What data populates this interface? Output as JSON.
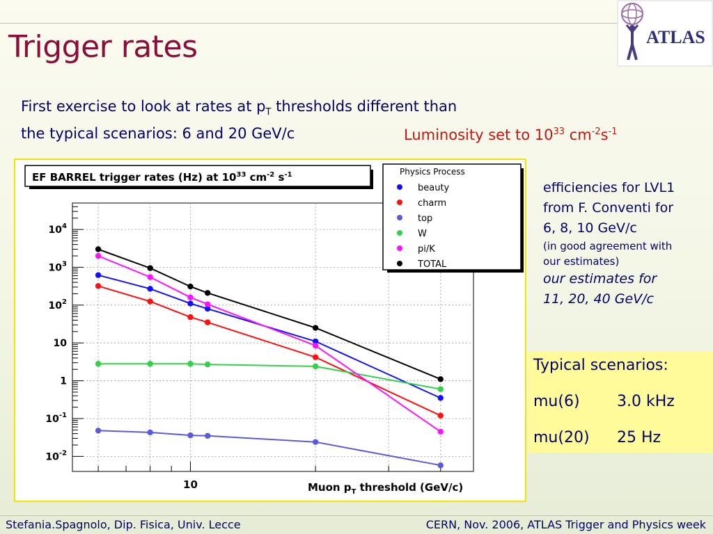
{
  "slide": {
    "title": "Trigger rates",
    "intro_line1_prefix": "First exercise to look at rates at p",
    "intro_line1_sub": "T",
    "intro_line1_suffix": " thresholds different than",
    "intro_line2": "the typical scenarios: 6 and 20 GeV/c",
    "luminosity_prefix": "Luminosity set to 10",
    "luminosity_exp": "33",
    "luminosity_cm": " cm",
    "luminosity_cm_exp": "-2",
    "luminosity_s": "s",
    "luminosity_s_exp": "-1"
  },
  "logo": {
    "text": "ATLAS",
    "icon": "atlas-figure-icon"
  },
  "side_note": {
    "line1": "efficiencies for LVL1",
    "line2": "from F. Conventi for",
    "line3": "6, 8, 10 GeV/c",
    "small1": "(in good agreement with",
    "small2": "our estimates)",
    "italic1": "our estimates for",
    "italic2": "11, 20, 40 GeV/c"
  },
  "scenarios": {
    "heading": "Typical scenarios:",
    "items": [
      {
        "label": "mu(6)",
        "value": "3.0 kHz"
      },
      {
        "label": "mu(20)",
        "value": "25 Hz"
      }
    ]
  },
  "footer": {
    "left": "Stefania.Spagnolo, Dip. Fisica, Univ. Lecce",
    "right": "CERN, Nov. 2006, ATLAS Trigger and Physics week"
  },
  "chart_data": {
    "type": "line",
    "title": "EF BARREL  trigger rates (Hz) at 10^33 cm^-2 s^-1",
    "title_parts": {
      "prefix": "EF BARREL  trigger rates (Hz) at 10",
      "exp1": "33",
      "mid": " cm",
      "exp2": "-2",
      "mid2": " s",
      "exp3": "-1"
    },
    "xlabel_parts": {
      "prefix": "Muon p",
      "sub": "T",
      "suffix": " threshold (GeV/c)"
    },
    "x_scale": "log",
    "y_scale": "log",
    "xlim": [
      5.2,
      48
    ],
    "ylim": [
      0.004,
      50000
    ],
    "grid": true,
    "x_tick_label": "10",
    "y_tick_labels": [
      {
        "value": 10000,
        "base": "10",
        "exp": "4"
      },
      {
        "value": 1000,
        "base": "10",
        "exp": "3"
      },
      {
        "value": 100,
        "base": "10",
        "exp": "2"
      },
      {
        "value": 10,
        "base": "10",
        "exp": ""
      },
      {
        "value": 1,
        "base": "1",
        "exp": ""
      },
      {
        "value": 0.1,
        "base": "10",
        "exp": "-1"
      },
      {
        "value": 0.01,
        "base": "10",
        "exp": "-2"
      }
    ],
    "legend_title": "Physics Process",
    "legend_position": "top-right",
    "x": [
      6,
      8,
      10,
      11,
      20,
      40
    ],
    "series": [
      {
        "name": "beauty",
        "color": "#1010ff",
        "values": [
          620,
          270,
          110,
          80,
          11,
          0.35
        ]
      },
      {
        "name": "charm",
        "color": "#ff1010",
        "values": [
          320,
          125,
          48,
          35,
          4.2,
          0.12
        ]
      },
      {
        "name": "top",
        "color": "#5a5adc",
        "values": [
          0.048,
          0.043,
          0.036,
          0.035,
          0.024,
          0.0058
        ]
      },
      {
        "name": "W",
        "color": "#33d14a",
        "values": [
          2.8,
          2.8,
          2.8,
          2.7,
          2.4,
          0.6
        ]
      },
      {
        "name": "pi/K",
        "color": "#ff10ff",
        "values": [
          2000,
          550,
          160,
          105,
          8.5,
          0.045
        ]
      },
      {
        "name": "TOTAL",
        "color": "#000000",
        "values": [
          3000,
          950,
          310,
          210,
          25,
          1.1
        ]
      }
    ]
  }
}
